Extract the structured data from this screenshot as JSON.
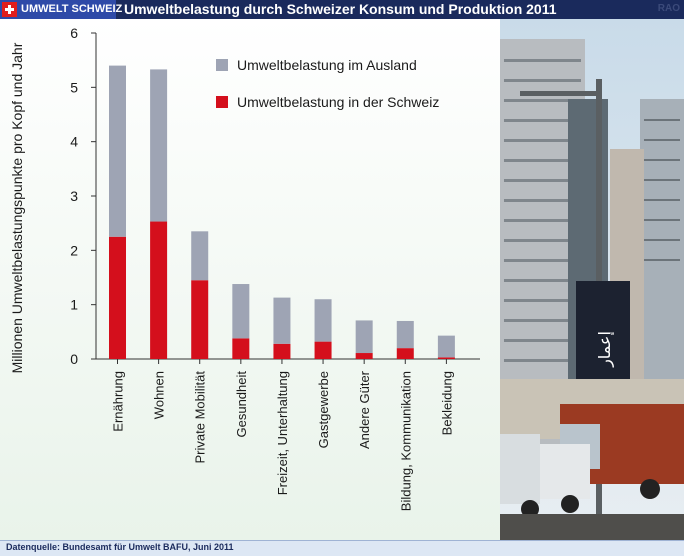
{
  "header": {
    "brand": "UMWELT SCHWEIZ",
    "title": "Umweltbelastung durch Schweizer Konsum und Produktion 2011",
    "corner_mark": "RAO",
    "background_color": "#1a2a5c",
    "brand_color": "#2e4aa8"
  },
  "photo": {
    "sign_text": "إعمار"
  },
  "footer": {
    "source": "Datenquelle: Bundesamt für Umwelt BAFU, Juni 2011"
  },
  "chart_data": {
    "type": "bar",
    "stacked": true,
    "ylabel": "Millionen Umweltbelastungspunkte pro Kopf und Jahr",
    "ylim": [
      0,
      6
    ],
    "yticks": [
      0,
      1,
      2,
      3,
      4,
      5,
      6
    ],
    "categories": [
      "Ernährung",
      "Wohnen",
      "Private Mobilität",
      "Gesundheit",
      "Freizeit, Unterhaltung",
      "Gastgewerbe",
      "Andere Güter",
      "Bildung, Kommunikation",
      "Bekleidung"
    ],
    "series": [
      {
        "name": "Umweltbelastung in der Schweiz",
        "color": "#d40f1c",
        "values": [
          2.25,
          2.53,
          1.45,
          0.38,
          0.28,
          0.32,
          0.11,
          0.2,
          0.03
        ]
      },
      {
        "name": "Umweltbelastung im Ausland",
        "color": "#9ea4b4",
        "values": [
          3.15,
          2.8,
          0.9,
          1.0,
          0.85,
          0.78,
          0.6,
          0.5,
          0.4
        ]
      }
    ],
    "legend": "top-right",
    "grid": false
  }
}
